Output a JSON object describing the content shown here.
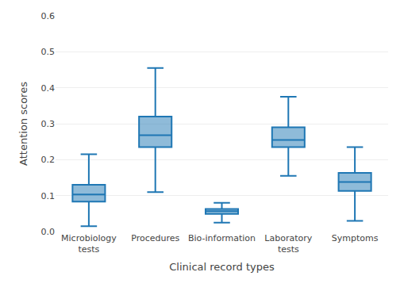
{
  "chart_data": {
    "type": "box",
    "categories": [
      "Microbiology\ntests",
      "Procedures",
      "Bio-information",
      "Laboratory\ntests",
      "Symptoms"
    ],
    "boxes": [
      {
        "whislo": 0.015,
        "q1": 0.083,
        "med": 0.103,
        "q3": 0.13,
        "whishi": 0.215
      },
      {
        "whislo": 0.11,
        "q1": 0.235,
        "med": 0.268,
        "q3": 0.32,
        "whishi": 0.455
      },
      {
        "whislo": 0.025,
        "q1": 0.049,
        "med": 0.057,
        "q3": 0.063,
        "whishi": 0.08
      },
      {
        "whislo": 0.155,
        "q1": 0.235,
        "med": 0.255,
        "q3": 0.29,
        "whishi": 0.375
      },
      {
        "whislo": 0.03,
        "q1": 0.113,
        "med": 0.138,
        "q3": 0.163,
        "whishi": 0.235
      }
    ],
    "xlabel": "Clinical record types",
    "ylabel": "Attention scores",
    "ylim": [
      0.0,
      0.6
    ],
    "yticks": [
      {
        "value": 0.0,
        "label": "0.0"
      },
      0.1,
      0.2,
      0.3,
      0.4,
      0.5,
      0.6
    ],
    "grid": true
  }
}
